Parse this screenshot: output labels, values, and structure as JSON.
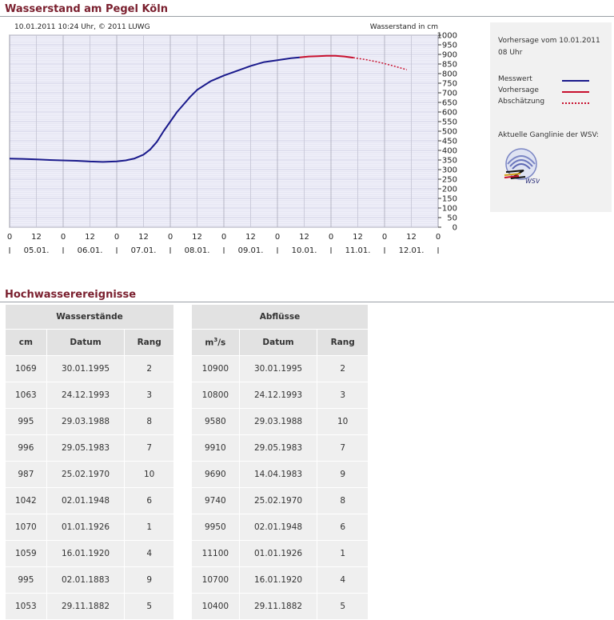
{
  "page": {
    "title": "Wasserstand am Pegel Köln",
    "events_title": "Hochwasserereignisse"
  },
  "chart_header": {
    "left": "10.01.2011 10:24 Uhr, © 2011 LUWG",
    "right": "Wasserstand in cm"
  },
  "chart_data": {
    "type": "line",
    "title": "Wasserstand am Pegel Köln",
    "ylabel": "Wasserstand in cm",
    "xlabel": "",
    "ylim": [
      0,
      1000
    ],
    "yticks": [
      0,
      50,
      100,
      150,
      200,
      250,
      300,
      350,
      400,
      450,
      500,
      550,
      600,
      650,
      700,
      750,
      800,
      850,
      900,
      950,
      1000
    ],
    "x_unit": "hours since 05.01.2011 00:00",
    "xlim": [
      0,
      192
    ],
    "hour_ticks": [
      {
        "h": 0,
        "label": "0"
      },
      {
        "h": 12,
        "label": "12"
      },
      {
        "h": 24,
        "label": "0"
      },
      {
        "h": 36,
        "label": "12"
      },
      {
        "h": 48,
        "label": "0"
      },
      {
        "h": 60,
        "label": "12"
      },
      {
        "h": 72,
        "label": "0"
      },
      {
        "h": 84,
        "label": "12"
      },
      {
        "h": 96,
        "label": "0"
      },
      {
        "h": 108,
        "label": "12"
      },
      {
        "h": 120,
        "label": "0"
      },
      {
        "h": 132,
        "label": "12"
      },
      {
        "h": 144,
        "label": "0"
      },
      {
        "h": 156,
        "label": "12"
      },
      {
        "h": 168,
        "label": "0"
      },
      {
        "h": 180,
        "label": "12"
      },
      {
        "h": 192,
        "label": "0"
      }
    ],
    "day_labels": [
      {
        "h": 12,
        "label": "05.01."
      },
      {
        "h": 36,
        "label": "06.01."
      },
      {
        "h": 60,
        "label": "07.01."
      },
      {
        "h": 84,
        "label": "08.01."
      },
      {
        "h": 108,
        "label": "09.01."
      },
      {
        "h": 132,
        "label": "10.01."
      },
      {
        "h": 156,
        "label": "11.01."
      },
      {
        "h": 180,
        "label": "12.01."
      }
    ],
    "grid": true,
    "series": [
      {
        "name": "Messwert",
        "color": "#1a1a8c",
        "style": "solid",
        "x": [
          0,
          6,
          12,
          18,
          24,
          30,
          36,
          42,
          48,
          52,
          56,
          60,
          63,
          66,
          69,
          72,
          75,
          78,
          81,
          84,
          90,
          96,
          102,
          108,
          114,
          120,
          126,
          130
        ],
        "y": [
          357,
          356,
          353,
          350,
          348,
          346,
          342,
          340,
          343,
          348,
          358,
          378,
          405,
          445,
          500,
          550,
          600,
          640,
          680,
          715,
          760,
          790,
          815,
          840,
          860,
          870,
          880,
          884
        ]
      },
      {
        "name": "Vorhersage",
        "color": "#c8102e",
        "style": "solid",
        "x": [
          130,
          134,
          138,
          142,
          146,
          150,
          154
        ],
        "y": [
          884,
          889,
          891,
          893,
          893,
          889,
          883
        ]
      },
      {
        "name": "Abschätzung",
        "color": "#c8102e",
        "style": "dotted",
        "x": [
          154,
          160,
          166,
          172,
          178
        ],
        "y": [
          883,
          872,
          858,
          840,
          820
        ]
      }
    ]
  },
  "legend": {
    "forecast_note": "Vorhersage vom 10.01.2011 08 Uhr",
    "items": [
      {
        "label": "Messwert",
        "color": "#1a1a8c",
        "style": "solid"
      },
      {
        "label": "Vorhersage",
        "color": "#c8102e",
        "style": "solid"
      },
      {
        "label": "Abschätzung",
        "color": "#c8102e",
        "style": "dotted"
      }
    ],
    "link_text": "Aktuelle Ganglinie der WSV:",
    "logo_text": "WSV"
  },
  "wasserstaende": {
    "title": "Wasserstände",
    "headers": [
      "cm",
      "Datum",
      "Rang"
    ],
    "rows": [
      [
        "1069",
        "30.01.1995",
        "2"
      ],
      [
        "1063",
        "24.12.1993",
        "3"
      ],
      [
        "995",
        "29.03.1988",
        "8"
      ],
      [
        "996",
        "29.05.1983",
        "7"
      ],
      [
        "987",
        "25.02.1970",
        "10"
      ],
      [
        "1042",
        "02.01.1948",
        "6"
      ],
      [
        "1070",
        "01.01.1926",
        "1"
      ],
      [
        "1059",
        "16.01.1920",
        "4"
      ],
      [
        "995",
        "02.01.1883",
        "9"
      ],
      [
        "1053",
        "29.11.1882",
        "5"
      ]
    ]
  },
  "abfluesse": {
    "title": "Abflüsse",
    "unit_base": "m",
    "unit_sup": "3",
    "unit_rest": "/s",
    "headers": [
      "Datum",
      "Rang"
    ],
    "rows": [
      [
        "10900",
        "30.01.1995",
        "2"
      ],
      [
        "10800",
        "24.12.1993",
        "3"
      ],
      [
        "9580",
        "29.03.1988",
        "10"
      ],
      [
        "9910",
        "29.05.1983",
        "7"
      ],
      [
        "9690",
        "14.04.1983",
        "9"
      ],
      [
        "9740",
        "25.02.1970",
        "8"
      ],
      [
        "9950",
        "02.01.1948",
        "6"
      ],
      [
        "11100",
        "01.01.1926",
        "1"
      ],
      [
        "10700",
        "16.01.1920",
        "4"
      ],
      [
        "10400",
        "29.11.1882",
        "5"
      ]
    ]
  }
}
